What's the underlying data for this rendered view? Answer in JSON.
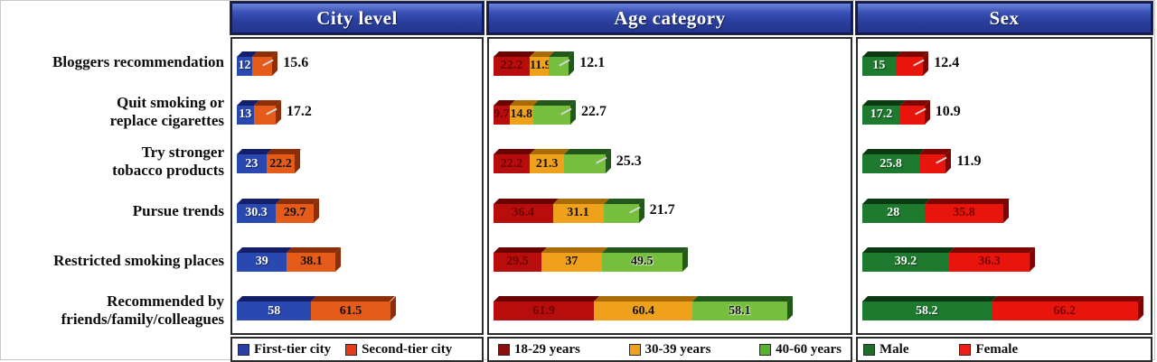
{
  "chart_data": {
    "type": "bar",
    "variant": "horizontal-stacked-3d",
    "grid": false,
    "legend_position": "bottom",
    "categories": [
      "Bloggers recommendation",
      "Quit smoking or\nreplace cigarettes",
      "Try stronger\ntobacco products",
      "Pursue trends",
      "Restricted smoking places",
      "Recommended by\nfriends/family/colleagues"
    ],
    "colors": {
      "header_text": "#ffffff",
      "header_border": "#10195c",
      "panel_border": "#2b2b2b",
      "background": "#ffffff",
      "external_label_text": "#0d0d0d"
    },
    "panels": [
      {
        "title": "City level",
        "series": [
          {
            "name": "First-tier city",
            "color": "#2a49b0",
            "dark": "#131f6a",
            "swatch": "#2a3fa6",
            "text": "#ffffff",
            "text_style": "light",
            "values": [
              12,
              13,
              23,
              30.3,
              39,
              58
            ],
            "labels": [
              "12",
              "13",
              "23",
              "30.3",
              "39",
              "58"
            ],
            "external": [
              false,
              false,
              false,
              false,
              false,
              false
            ]
          },
          {
            "name": "Second-tier city",
            "color": "#e55c1a",
            "dark": "#8c2e08",
            "swatch": "#e8391c",
            "text": "#101010",
            "text_style": "plain",
            "values": [
              15.6,
              17.2,
              22.2,
              29.7,
              38.1,
              61.5
            ],
            "labels": [
              "15.6",
              "17.2",
              "22.2",
              "29.7",
              "38.1",
              "61.5"
            ],
            "external": [
              true,
              true,
              false,
              false,
              false,
              false
            ]
          }
        ]
      },
      {
        "title": "Age category",
        "series": [
          {
            "name": "18-29 years",
            "color": "#b80d0d",
            "dark": "#6b0202",
            "swatch": "#8c0f0f",
            "text": "#6e0000",
            "text_style": "plain",
            "values": [
              22.2,
              9.7,
              22.2,
              36.4,
              29.5,
              61.9
            ],
            "labels": [
              "22.2",
              "9.7",
              "22.2",
              "36.4",
              "29.5",
              "61.9"
            ],
            "external": [
              false,
              false,
              false,
              false,
              false,
              false
            ]
          },
          {
            "name": "30-39 years",
            "color": "#f0a11c",
            "dark": "#a86b05",
            "swatch": "#f0a11c",
            "text": "#141414",
            "text_style": "plain",
            "values": [
              11.9,
              14.8,
              21.3,
              31.1,
              37,
              60.4
            ],
            "labels": [
              "11.9",
              "14.8",
              "21.3",
              "31.1",
              "37",
              "60.4"
            ],
            "external": [
              false,
              false,
              false,
              false,
              false,
              false
            ]
          },
          {
            "name": "40-60 years",
            "color": "#76bf3e",
            "dark": "#23581c",
            "swatch": "#55b32c",
            "text": "#101010",
            "text_style": "halo",
            "values": [
              12.1,
              22.7,
              25.3,
              21.7,
              49.5,
              58.1
            ],
            "labels": [
              "12.1",
              "22.7",
              "25.3",
              "21.7",
              "49.5",
              "58.1"
            ],
            "external": [
              true,
              true,
              true,
              true,
              false,
              false
            ]
          }
        ]
      },
      {
        "title": "Sex",
        "series": [
          {
            "name": "Male",
            "color": "#1e7a2e",
            "dark": "#0b3a12",
            "swatch": "#1e6b2a",
            "text": "#ffffff",
            "text_style": "light",
            "values": [
              15,
              17.2,
              25.8,
              28,
              39.2,
              58.2
            ],
            "labels": [
              "15",
              "17.2",
              "25.8",
              "28",
              "39.2",
              "58.2"
            ],
            "external": [
              false,
              false,
              false,
              false,
              false,
              false
            ]
          },
          {
            "name": "Female",
            "color": "#e8150d",
            "dark": "#7e0502",
            "swatch": "#ed1c16",
            "text": "#7a0000",
            "text_style": "plain",
            "values": [
              12.4,
              10.9,
              11.9,
              35.8,
              36.3,
              66.2
            ],
            "labels": [
              "12.4",
              "10.9",
              "11.9",
              "35.8",
              "36.3",
              "66.2"
            ],
            "external": [
              true,
              true,
              true,
              false,
              false,
              false
            ]
          }
        ]
      }
    ]
  }
}
